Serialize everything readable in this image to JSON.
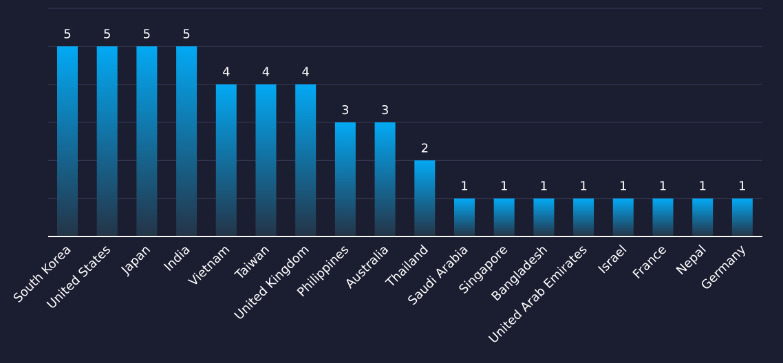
{
  "chart_data": {
    "type": "bar",
    "categories": [
      "South Korea",
      "United States",
      "Japan",
      "India",
      "Vietnam",
      "Taiwan",
      "United Kingdom",
      "Philippines",
      "Australia",
      "Thailand",
      "Saudi Arabia",
      "Singapore",
      "Bangladesh",
      "United Arab Emirates",
      "Israel",
      "France",
      "Nepal",
      "Germany"
    ],
    "values": [
      5,
      5,
      5,
      5,
      4,
      4,
      4,
      3,
      3,
      2,
      1,
      1,
      1,
      1,
      1,
      1,
      1,
      1
    ],
    "title": "",
    "xlabel": "",
    "ylabel": "",
    "ylim": [
      0,
      6
    ],
    "grid": true,
    "data_labels": true,
    "colors": {
      "background": "#1b1d31",
      "bar_top": "#03a9f4",
      "bar_bottom": "#243447",
      "grid": "#353a52",
      "axis": "#ffffff",
      "text": "#ffffff"
    }
  }
}
